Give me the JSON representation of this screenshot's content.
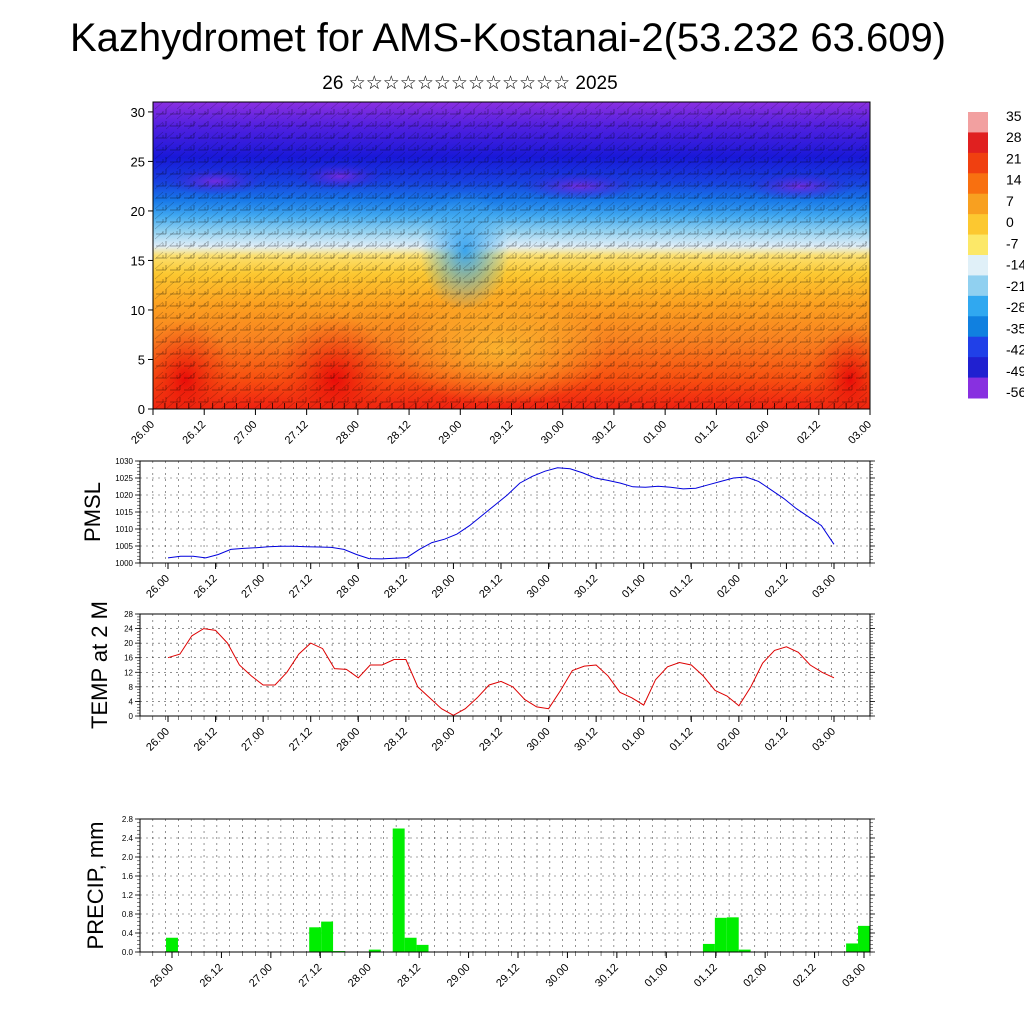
{
  "header": {
    "title": "Kazhydromet for AMS-Kostanai-2(53.232 63.609)",
    "subtitle": "26 ☆☆☆☆☆☆☆☆☆☆☆☆☆ 2025"
  },
  "chart_data": [
    {
      "type": "heatmap",
      "name": "cross-section",
      "x_tick_labels": [
        "26.00",
        "26.12",
        "27.00",
        "27.12",
        "28.00",
        "28.12",
        "29.00",
        "29.12",
        "30.00",
        "30.12",
        "01.00",
        "01.12",
        "02.00",
        "02.12",
        "03.00"
      ],
      "y_ticks": [
        0,
        5,
        10,
        15,
        20,
        25,
        30
      ],
      "ylim": [
        0,
        31
      ],
      "colorbar": {
        "labels": [
          "35",
          "28",
          "21",
          "14",
          "7",
          "0",
          "-7",
          "-14",
          "-21",
          "-28",
          "-35",
          "-42",
          "-49",
          "-56"
        ],
        "colors": [
          "#f2a0a0",
          "#e02020",
          "#f04010",
          "#f87010",
          "#f8a020",
          "#fcc830",
          "#fce868",
          "#e0f0f8",
          "#90d0f0",
          "#30a8f0",
          "#1080e0",
          "#2040e8",
          "#2020d0",
          "#8830e0"
        ]
      },
      "note_temperature_pattern": "warm (red/orange) near surface, cold (blue/purple) aloft"
    },
    {
      "type": "line",
      "name": "pmsl",
      "ylabel": "PMSL",
      "ylim": [
        1000,
        1030
      ],
      "y_ticks": [
        1000,
        1005,
        1010,
        1015,
        1020,
        1025,
        1030
      ],
      "color": "#0000dd",
      "x_tick_labels": [
        "26.00",
        "26.12",
        "27.00",
        "27.12",
        "28.00",
        "28.12",
        "29.00",
        "29.12",
        "30.00",
        "30.12",
        "01.00",
        "01.12",
        "02.00",
        "02.12",
        "03.00"
      ],
      "values": [
        1001.5,
        1002,
        1002,
        1001.5,
        1002.5,
        1004,
        1004.3,
        1004.5,
        1004.8,
        1004.9,
        1004.9,
        1004.8,
        1004.7,
        1004.6,
        1004,
        1002.5,
        1001.3,
        1001.2,
        1001.4,
        1001.6,
        1004,
        1006,
        1007,
        1008.5,
        1011,
        1014,
        1017,
        1020,
        1023.5,
        1025.5,
        1027,
        1028,
        1027.7,
        1026.5,
        1025,
        1024.3,
        1023.5,
        1022.4,
        1022.3,
        1022.6,
        1022.3,
        1021.8,
        1022,
        1023,
        1024,
        1025,
        1025.3,
        1024,
        1021.5,
        1019,
        1016,
        1013.5,
        1011,
        1005.5
      ]
    },
    {
      "type": "line",
      "name": "temp2m",
      "ylabel": "TEMP at 2 M",
      "ylim": [
        0,
        28
      ],
      "y_ticks": [
        0,
        4,
        8,
        12,
        16,
        20,
        24,
        28
      ],
      "color": "#dd0000",
      "x_tick_labels": [
        "26.00",
        "26.12",
        "27.00",
        "27.12",
        "28.00",
        "28.12",
        "29.00",
        "29.12",
        "30.00",
        "30.12",
        "01.00",
        "01.12",
        "02.00",
        "02.12",
        "03.00"
      ],
      "values": [
        16,
        17,
        22,
        24,
        23.5,
        20,
        14,
        11,
        8.5,
        8.5,
        12,
        17,
        20,
        18.5,
        13,
        12.8,
        10.5,
        14,
        14,
        15.5,
        15.5,
        8,
        5,
        2,
        0.2,
        2,
        5,
        8.5,
        9.5,
        8,
        4.5,
        2.5,
        2,
        7,
        12.5,
        13.7,
        14,
        11,
        6.5,
        5,
        3,
        10,
        13.5,
        14.7,
        14,
        11,
        7,
        5.5,
        2.8,
        8,
        14.5,
        18,
        19,
        17.5,
        14,
        12,
        10.5
      ]
    },
    {
      "type": "bar",
      "name": "precip",
      "ylabel": "PRECIP, mm",
      "ylim": [
        0,
        2.8
      ],
      "y_ticks": [
        "0.0",
        "0.4",
        "0.8",
        "1.2",
        "1.6",
        "2.0",
        "2.4",
        "2.8"
      ],
      "color": "#00ee00",
      "x_tick_labels": [
        "26.00",
        "26.12",
        "27.00",
        "27.12",
        "28.00",
        "28.12",
        "29.00",
        "29.12",
        "30.00",
        "30.12",
        "01.00",
        "01.12",
        "02.00",
        "02.12",
        "03.00"
      ],
      "values": [
        0.3,
        0,
        0,
        0,
        0,
        0,
        0,
        0,
        0,
        0,
        0,
        0,
        0.52,
        0.64,
        0.02,
        0,
        0,
        0.05,
        0,
        2.6,
        0.3,
        0.15,
        0,
        0,
        0,
        0,
        0,
        0,
        0,
        0,
        0,
        0,
        0,
        0,
        0,
        0,
        0,
        0,
        0,
        0,
        0,
        0,
        0,
        0,
        0,
        0.17,
        0.72,
        0.73,
        0.05,
        0,
        0,
        0,
        0,
        0,
        0,
        0,
        0,
        0.18,
        0.55
      ]
    }
  ]
}
